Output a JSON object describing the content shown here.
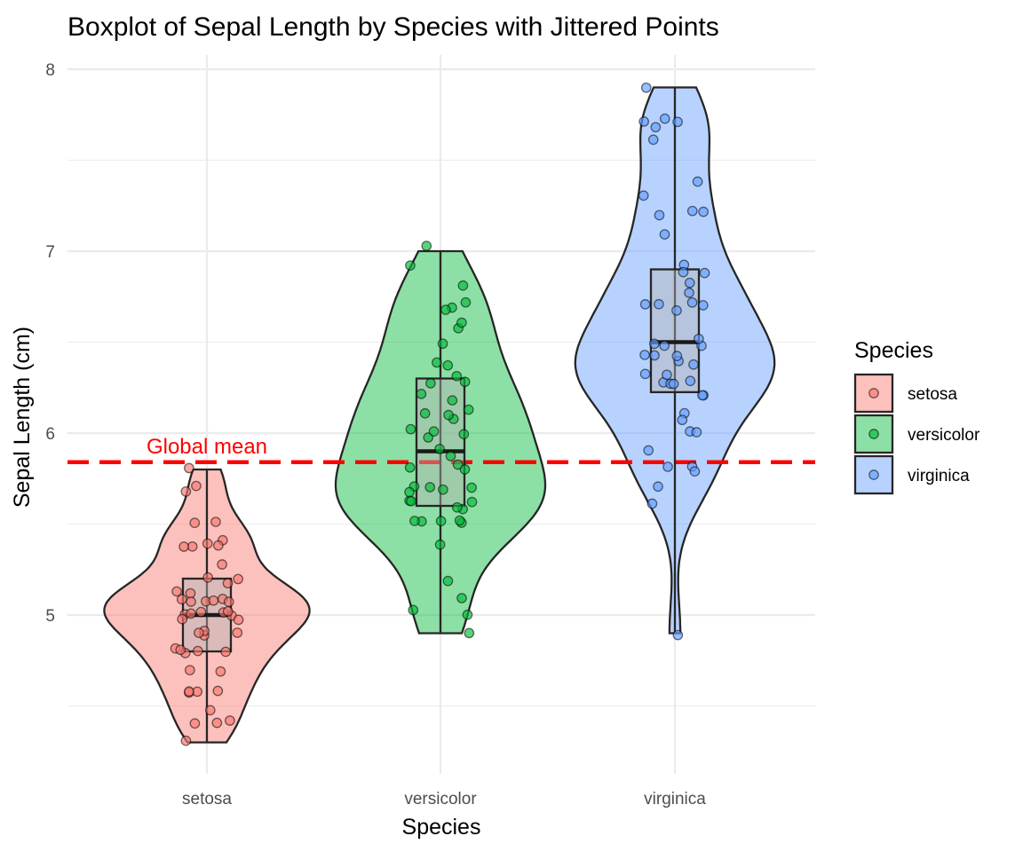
{
  "chart_data": {
    "type": "violin",
    "title": "Boxplot of Sepal Length by Species with Jittered Points",
    "xlabel": "Species",
    "ylabel": "Sepal Length (cm)",
    "ylim": [
      4.1,
      8.1
    ],
    "y_ticks": [
      5,
      6,
      7,
      8
    ],
    "categories": [
      "setosa",
      "versicolor",
      "virginica"
    ],
    "legend": {
      "title": "Species",
      "position": "right"
    },
    "grid": true,
    "reference_line": {
      "label": "Global mean",
      "value": 5.84,
      "color": "#ff0000",
      "style": "dashed"
    },
    "series": [
      {
        "name": "setosa",
        "color": "#f8766d",
        "range": [
          4.3,
          5.8
        ],
        "box": {
          "q1": 4.8,
          "median": 5.0,
          "q3": 5.2
        },
        "points": [
          5.1,
          4.9,
          4.7,
          4.6,
          5.0,
          5.4,
          4.6,
          5.0,
          4.4,
          4.9,
          5.4,
          4.8,
          4.8,
          4.3,
          5.8,
          5.7,
          5.4,
          5.1,
          5.7,
          5.1,
          5.4,
          5.1,
          4.6,
          5.1,
          4.8,
          5.0,
          5.0,
          5.2,
          5.2,
          4.7,
          4.8,
          5.4,
          5.2,
          5.5,
          4.9,
          5.0,
          5.5,
          4.9,
          4.4,
          5.1,
          5.0,
          4.5,
          4.4,
          5.0,
          5.1,
          4.8,
          5.1,
          4.6,
          5.3,
          5.0
        ]
      },
      {
        "name": "versicolor",
        "color": "#00ba38",
        "range": [
          4.9,
          7.0
        ],
        "box": {
          "q1": 5.6,
          "median": 5.9,
          "q3": 6.3
        },
        "points": [
          7.0,
          6.4,
          6.9,
          5.5,
          6.5,
          5.7,
          6.3,
          4.9,
          6.6,
          5.2,
          5.0,
          5.9,
          6.0,
          6.1,
          5.6,
          6.7,
          5.6,
          5.8,
          6.2,
          5.6,
          5.9,
          6.1,
          6.3,
          6.1,
          6.4,
          6.6,
          6.8,
          6.7,
          6.0,
          5.7,
          5.5,
          5.5,
          5.8,
          6.0,
          5.4,
          6.0,
          6.7,
          6.3,
          5.6,
          5.5,
          5.5,
          6.1,
          5.8,
          5.0,
          5.6,
          5.7,
          5.7,
          6.2,
          5.1,
          5.7
        ]
      },
      {
        "name": "virginica",
        "color": "#619cff",
        "range": [
          4.9,
          7.9
        ],
        "box": {
          "q1": 6.225,
          "median": 6.5,
          "q3": 6.9
        },
        "points": [
          6.3,
          5.8,
          7.1,
          6.3,
          6.5,
          7.6,
          4.9,
          7.3,
          6.7,
          7.2,
          6.5,
          6.4,
          6.8,
          5.7,
          5.8,
          6.4,
          6.5,
          7.7,
          7.7,
          6.0,
          6.9,
          5.6,
          7.7,
          6.3,
          6.7,
          7.2,
          6.2,
          6.1,
          6.4,
          7.2,
          7.4,
          7.9,
          6.4,
          6.3,
          6.1,
          7.7,
          6.3,
          6.4,
          6.0,
          6.9,
          6.7,
          6.9,
          5.8,
          6.8,
          6.7,
          6.7,
          6.3,
          6.5,
          6.2,
          5.9
        ]
      }
    ]
  }
}
